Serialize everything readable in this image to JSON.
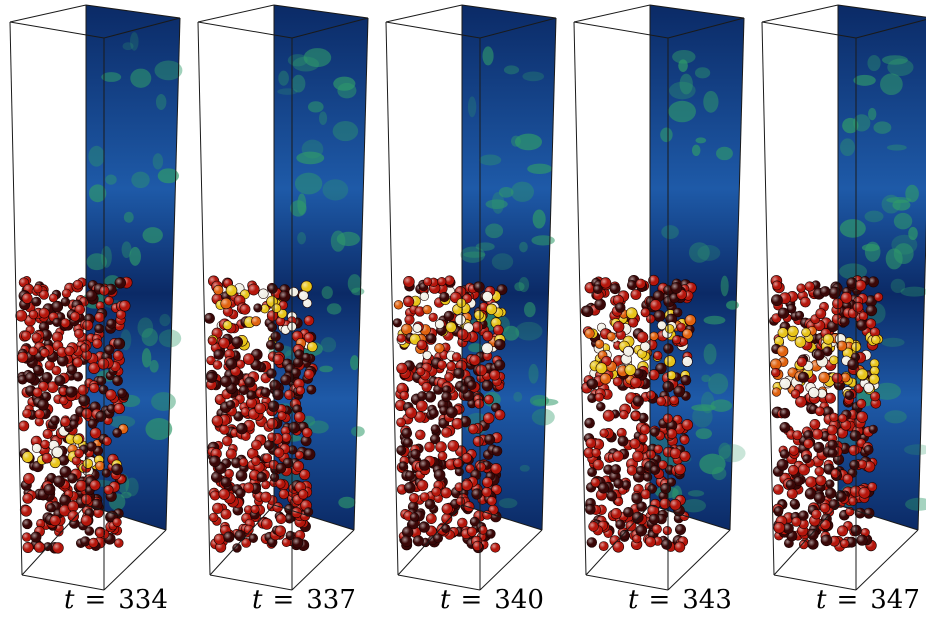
{
  "figure": {
    "panels": [
      {
        "variable": "t",
        "equals": "=",
        "value": "334"
      },
      {
        "variable": "t",
        "equals": "=",
        "value": "337"
      },
      {
        "variable": "t",
        "equals": "=",
        "value": "340"
      },
      {
        "variable": "t",
        "equals": "=",
        "value": "343"
      },
      {
        "variable": "t",
        "equals": "=",
        "value": "347"
      }
    ],
    "colors": {
      "box_edge": "#1a1a1a",
      "slice_dark": "#0b2a66",
      "slice_mid": "#1e5aa8",
      "slice_green": "#2f9a6a",
      "particle_dark": "#3a0707",
      "particle_red": "#b5160c",
      "particle_orange": "#e0620f",
      "particle_yellow": "#e8c41a",
      "particle_white": "#f2f0e6"
    },
    "bed_top_fraction": [
      0.0,
      0.0,
      0.1,
      0.35,
      0.5
    ]
  }
}
